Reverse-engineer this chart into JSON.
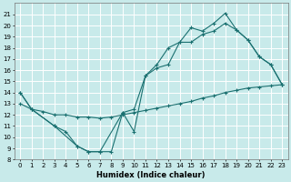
{
  "xlabel": "Humidex (Indice chaleur)",
  "bg_color": "#c8eaea",
  "grid_color": "#ffffff",
  "line_color": "#1a7070",
  "marker": "+",
  "ylim": [
    8,
    22
  ],
  "xlim": [
    -0.5,
    23.5
  ],
  "yticks": [
    8,
    9,
    10,
    11,
    12,
    13,
    14,
    15,
    16,
    17,
    18,
    19,
    20,
    21
  ],
  "xticks": [
    0,
    1,
    2,
    3,
    4,
    5,
    6,
    7,
    8,
    9,
    10,
    11,
    12,
    13,
    14,
    15,
    16,
    17,
    18,
    19,
    20,
    21,
    22,
    23
  ],
  "line_top_x": [
    0,
    1,
    3,
    4,
    5,
    6,
    7,
    9,
    10,
    11,
    12,
    13,
    14,
    15,
    16,
    17,
    18,
    19,
    20,
    21,
    22,
    23
  ],
  "line_top_y": [
    14,
    12.5,
    11,
    10.5,
    9.2,
    8.7,
    8.7,
    12.2,
    10.5,
    15.5,
    16.5,
    18,
    18.5,
    19.8,
    19.5,
    20.2,
    21.1,
    19.6,
    18.7,
    17.2,
    16.5,
    14.7
  ],
  "line_mid_x": [
    0,
    1,
    3,
    5,
    6,
    7,
    8,
    9,
    10,
    11,
    12,
    13,
    14,
    15,
    16,
    17,
    18,
    19,
    20,
    21,
    22,
    23
  ],
  "line_mid_y": [
    14,
    12.5,
    11,
    9.2,
    8.7,
    8.7,
    8.7,
    12.2,
    12.5,
    15.5,
    16.2,
    16.5,
    18.5,
    18.5,
    19.2,
    19.5,
    20.2,
    19.6,
    18.7,
    17.2,
    16.5,
    14.7
  ],
  "line_low_x": [
    0,
    1,
    2,
    3,
    4,
    5,
    6,
    7,
    8,
    9,
    10,
    11,
    12,
    13,
    14,
    15,
    16,
    17,
    18,
    19,
    20,
    21,
    22,
    23
  ],
  "line_low_y": [
    13.0,
    12.5,
    12.3,
    12.0,
    12.0,
    11.8,
    11.8,
    11.7,
    11.8,
    12.0,
    12.2,
    12.4,
    12.6,
    12.8,
    13.0,
    13.2,
    13.5,
    13.7,
    14.0,
    14.2,
    14.4,
    14.5,
    14.6,
    14.7
  ]
}
